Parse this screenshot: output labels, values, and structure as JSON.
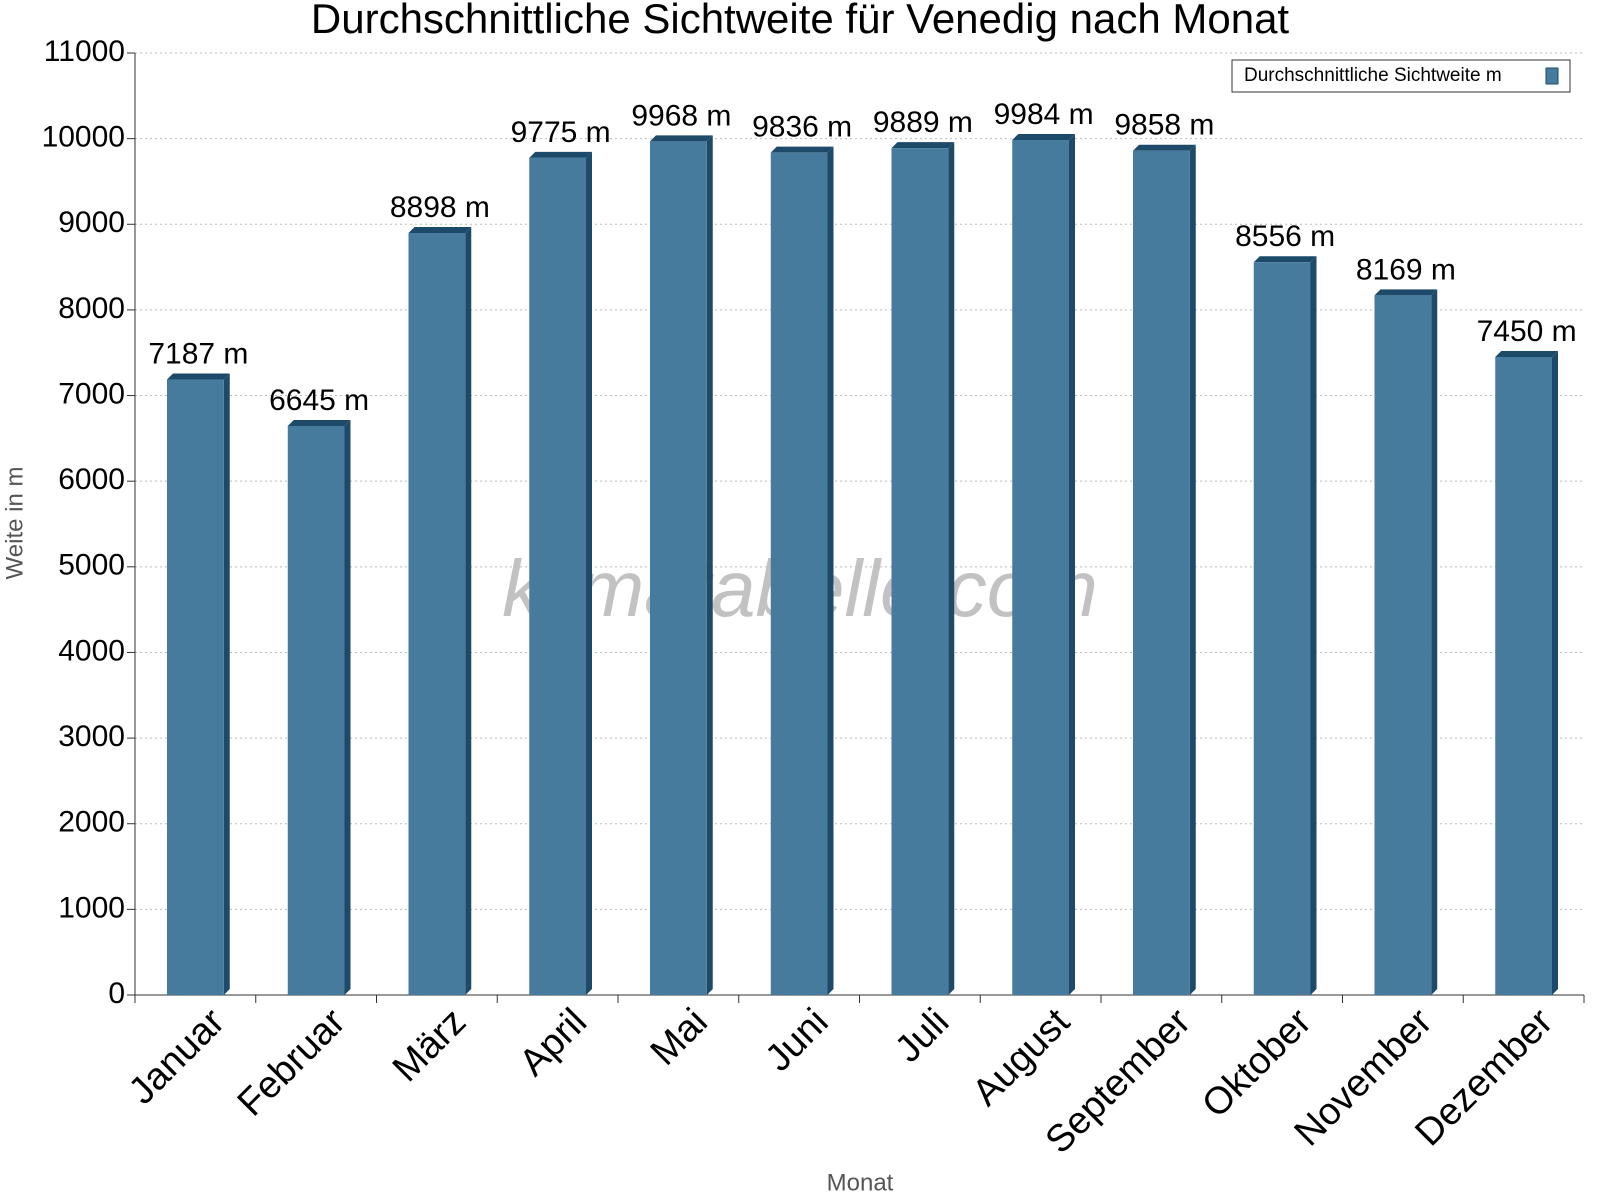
{
  "chart_data": {
    "type": "bar",
    "title": "Durchschnittliche Sichtweite für Venedig nach Monat",
    "x_label": "Monat",
    "y_label": "Weite in m",
    "watermark": "klimatabelle.com",
    "categories": [
      "Januar",
      "Februar",
      "März",
      "April",
      "Mai",
      "Juni",
      "Juli",
      "August",
      "September",
      "Oktober",
      "November",
      "Dezember"
    ],
    "series": [
      {
        "name": "Durchschnittliche Sichtweite m",
        "color": "#467b9e",
        "values": [
          7187,
          6645,
          8898,
          9775,
          9968,
          9836,
          9889,
          9984,
          9858,
          8556,
          8169,
          7450
        ],
        "value_labels": [
          "7187 m",
          "6645 m",
          "8898 m",
          "9775 m",
          "9968 m",
          "9836 m",
          "9889 m",
          "9984 m",
          "9858 m",
          "8556 m",
          "8169 m",
          "7450 m"
        ]
      }
    ],
    "ylim": [
      0,
      11000
    ],
    "yticks": [
      0,
      1000,
      2000,
      3000,
      4000,
      5000,
      6000,
      7000,
      8000,
      9000,
      10000,
      11000
    ],
    "grid": true,
    "legend": "top-right"
  }
}
